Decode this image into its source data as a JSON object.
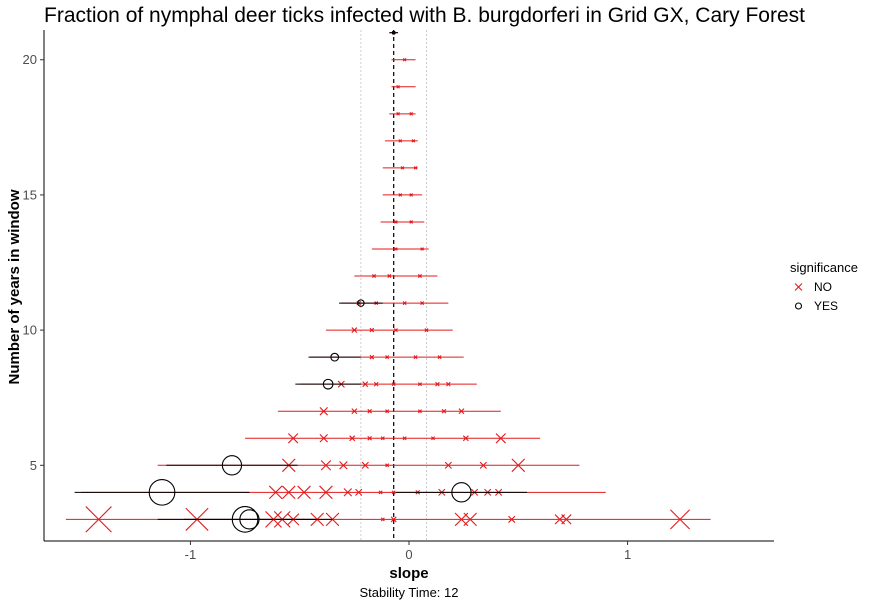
{
  "chart_data": {
    "type": "scatter",
    "title": "Fraction of nymphal deer ticks infected with B. burgdorferi in Grid GX, Cary Forest",
    "xlabel": "slope",
    "ylabel": "Number of years in window",
    "caption": "Stability Time: 12",
    "xlim": [
      -1.67,
      1.67
    ],
    "ylim": [
      2.2,
      21.1
    ],
    "x_ticks": [
      -1,
      0,
      1
    ],
    "x_tick_labels": [
      "-1",
      "0",
      "1"
    ],
    "y_ticks": [
      5,
      10,
      15,
      20
    ],
    "y_tick_labels": [
      "5",
      "10",
      "15",
      "20"
    ],
    "reference_lines": {
      "dashed": -0.07,
      "dotted": [
        -0.22,
        0.08
      ]
    },
    "legend": {
      "title": "significance",
      "position": "right",
      "entries": [
        {
          "label": "NO",
          "symbol": "x",
          "color": "#e41a1c"
        },
        {
          "label": "YES",
          "symbol": "circle",
          "color": "#000000"
        }
      ]
    },
    "colors": {
      "NO": "#e41a1c",
      "YES": "#000000",
      "reference": "#000000",
      "dotted": "#bfbfbf"
    },
    "series": [
      {
        "name": "NO",
        "points": [
          {
            "y": 3,
            "slope": -1.42,
            "err": 0.4
          },
          {
            "y": 3,
            "slope": -0.97,
            "err": 0.35
          },
          {
            "y": 3,
            "slope": -0.62,
            "err": 0.25
          },
          {
            "y": 3,
            "slope": -0.58,
            "err": 0.25
          },
          {
            "y": 3,
            "slope": -0.53,
            "err": 0.18
          },
          {
            "y": 3,
            "slope": -0.42,
            "err": 0.2
          },
          {
            "y": 3,
            "slope": -0.35,
            "err": 0.2
          },
          {
            "y": 3,
            "slope": -0.12,
            "err": 0.05
          },
          {
            "y": 3,
            "slope": -0.07,
            "err": 0.08
          },
          {
            "y": 3,
            "slope": 0.24,
            "err": 0.2
          },
          {
            "y": 3,
            "slope": 0.28,
            "err": 0.2
          },
          {
            "y": 3,
            "slope": 0.47,
            "err": 0.1
          },
          {
            "y": 3,
            "slope": 0.69,
            "err": 0.15
          },
          {
            "y": 3,
            "slope": 0.72,
            "err": 0.15
          },
          {
            "y": 3,
            "slope": 1.24,
            "err": 0.3
          },
          {
            "y": 4,
            "slope": -0.61,
            "err": 0.2
          },
          {
            "y": 4,
            "slope": -0.55,
            "err": 0.2
          },
          {
            "y": 4,
            "slope": -0.48,
            "err": 0.2
          },
          {
            "y": 4,
            "slope": -0.38,
            "err": 0.2
          },
          {
            "y": 4,
            "slope": -0.28,
            "err": 0.12
          },
          {
            "y": 4,
            "slope": -0.23,
            "err": 0.1
          },
          {
            "y": 4,
            "slope": -0.13,
            "err": 0.05
          },
          {
            "y": 4,
            "slope": -0.07,
            "err": 0.05
          },
          {
            "y": 4,
            "slope": 0.04,
            "err": 0.06
          },
          {
            "y": 4,
            "slope": 0.15,
            "err": 0.1
          },
          {
            "y": 4,
            "slope": 0.3,
            "err": 0.1
          },
          {
            "y": 4,
            "slope": 0.36,
            "err": 0.1
          },
          {
            "y": 4,
            "slope": 0.41,
            "err": 0.1
          },
          {
            "y": 5,
            "slope": -0.55,
            "err": 0.2
          },
          {
            "y": 5,
            "slope": -0.38,
            "err": 0.15
          },
          {
            "y": 5,
            "slope": -0.3,
            "err": 0.12
          },
          {
            "y": 5,
            "slope": -0.2,
            "err": 0.1
          },
          {
            "y": 5,
            "slope": -0.1,
            "err": 0.05
          },
          {
            "y": 5,
            "slope": 0.18,
            "err": 0.1
          },
          {
            "y": 5,
            "slope": 0.34,
            "err": 0.1
          },
          {
            "y": 5,
            "slope": 0.5,
            "err": 0.2
          },
          {
            "y": 6,
            "slope": -0.53,
            "err": 0.15
          },
          {
            "y": 6,
            "slope": -0.39,
            "err": 0.12
          },
          {
            "y": 6,
            "slope": -0.26,
            "err": 0.08
          },
          {
            "y": 6,
            "slope": -0.18,
            "err": 0.06
          },
          {
            "y": 6,
            "slope": -0.12,
            "err": 0.05
          },
          {
            "y": 6,
            "slope": -0.02,
            "err": 0.05
          },
          {
            "y": 6,
            "slope": 0.11,
            "err": 0.05
          },
          {
            "y": 6,
            "slope": 0.26,
            "err": 0.08
          },
          {
            "y": 6,
            "slope": 0.42,
            "err": 0.15
          },
          {
            "y": 7,
            "slope": -0.39,
            "err": 0.12
          },
          {
            "y": 7,
            "slope": -0.25,
            "err": 0.08
          },
          {
            "y": 7,
            "slope": -0.18,
            "err": 0.06
          },
          {
            "y": 7,
            "slope": -0.1,
            "err": 0.05
          },
          {
            "y": 7,
            "slope": 0.05,
            "err": 0.05
          },
          {
            "y": 7,
            "slope": 0.16,
            "err": 0.06
          },
          {
            "y": 7,
            "slope": 0.24,
            "err": 0.08
          },
          {
            "y": 8,
            "slope": -0.31,
            "err": 0.1
          },
          {
            "y": 8,
            "slope": -0.2,
            "err": 0.08
          },
          {
            "y": 8,
            "slope": -0.15,
            "err": 0.06
          },
          {
            "y": 8,
            "slope": -0.07,
            "err": 0.05
          },
          {
            "y": 8,
            "slope": 0.05,
            "err": 0.05
          },
          {
            "y": 8,
            "slope": 0.13,
            "err": 0.06
          },
          {
            "y": 8,
            "slope": 0.18,
            "err": 0.06
          },
          {
            "y": 9,
            "slope": -0.17,
            "err": 0.06
          },
          {
            "y": 9,
            "slope": -0.1,
            "err": 0.05
          },
          {
            "y": 9,
            "slope": 0.03,
            "err": 0.05
          },
          {
            "y": 9,
            "slope": 0.14,
            "err": 0.05
          },
          {
            "y": 10,
            "slope": -0.25,
            "err": 0.08
          },
          {
            "y": 10,
            "slope": -0.17,
            "err": 0.06
          },
          {
            "y": 10,
            "slope": -0.06,
            "err": 0.05
          },
          {
            "y": 10,
            "slope": 0.08,
            "err": 0.05
          },
          {
            "y": 11,
            "slope": -0.23,
            "err": 0.06
          },
          {
            "y": 11,
            "slope": -0.15,
            "err": 0.05
          },
          {
            "y": 11,
            "slope": -0.02,
            "err": 0.05
          },
          {
            "y": 11,
            "slope": 0.06,
            "err": 0.05
          },
          {
            "y": 12,
            "slope": -0.16,
            "err": 0.05
          },
          {
            "y": 12,
            "slope": -0.09,
            "err": 0.05
          },
          {
            "y": 12,
            "slope": 0.05,
            "err": 0.05
          },
          {
            "y": 13,
            "slope": -0.06,
            "err": 0.04
          },
          {
            "y": 13,
            "slope": 0.06,
            "err": 0.04
          },
          {
            "y": 14,
            "slope": -0.06,
            "err": 0.04
          },
          {
            "y": 14,
            "slope": 0.01,
            "err": 0.04
          },
          {
            "y": 15,
            "slope": -0.04,
            "err": 0.03
          },
          {
            "y": 15,
            "slope": 0.01,
            "err": 0.03
          },
          {
            "y": 16,
            "slope": -0.03,
            "err": 0.03
          },
          {
            "y": 16,
            "slope": 0.03,
            "err": 0.03
          },
          {
            "y": 17,
            "slope": -0.04,
            "err": 0.03
          },
          {
            "y": 17,
            "slope": 0.02,
            "err": 0.03
          },
          {
            "y": 18,
            "slope": -0.05,
            "err": 0.03
          },
          {
            "y": 18,
            "slope": 0.01,
            "err": 0.03
          },
          {
            "y": 19,
            "slope": -0.05,
            "err": 0.03
          },
          {
            "y": 20,
            "slope": -0.02,
            "err": 0.03
          }
        ]
      },
      {
        "name": "YES",
        "points": [
          {
            "y": 3,
            "slope": -0.75,
            "err": 0.4
          },
          {
            "y": 3,
            "slope": -0.73,
            "err": 0.3
          },
          {
            "y": 4,
            "slope": -1.13,
            "err": 0.4
          },
          {
            "y": 4,
            "slope": 0.24,
            "err": 0.3
          },
          {
            "y": 5,
            "slope": -0.81,
            "err": 0.3
          },
          {
            "y": 8,
            "slope": -0.37,
            "err": 0.15
          },
          {
            "y": 9,
            "slope": -0.34,
            "err": 0.12
          },
          {
            "y": 11,
            "slope": -0.22,
            "err": 0.1
          },
          {
            "y": 21,
            "slope": -0.07,
            "err": 0.02
          }
        ]
      }
    ],
    "envelopes": [
      {
        "y": 3,
        "min": -1.57,
        "max": 1.38
      },
      {
        "y": 4,
        "min": -1.5,
        "max": 0.9
      },
      {
        "y": 5,
        "min": -1.15,
        "max": 0.78
      },
      {
        "y": 6,
        "min": -0.75,
        "max": 0.6
      },
      {
        "y": 7,
        "min": -0.6,
        "max": 0.42
      },
      {
        "y": 8,
        "min": -0.5,
        "max": 0.31
      },
      {
        "y": 9,
        "min": -0.45,
        "max": 0.25
      },
      {
        "y": 10,
        "min": -0.38,
        "max": 0.2
      },
      {
        "y": 11,
        "min": -0.31,
        "max": 0.18
      },
      {
        "y": 12,
        "min": -0.25,
        "max": 0.13
      },
      {
        "y": 13,
        "min": -0.17,
        "max": 0.09
      },
      {
        "y": 14,
        "min": -0.13,
        "max": 0.07
      },
      {
        "y": 15,
        "min": -0.12,
        "max": 0.06
      },
      {
        "y": 16,
        "min": -0.12,
        "max": 0.04
      },
      {
        "y": 17,
        "min": -0.11,
        "max": 0.04
      },
      {
        "y": 18,
        "min": -0.09,
        "max": 0.03
      },
      {
        "y": 19,
        "min": -0.08,
        "max": 0.03
      },
      {
        "y": 20,
        "min": -0.08,
        "max": 0.03
      },
      {
        "y": 21,
        "min": -0.09,
        "max": -0.05
      }
    ]
  }
}
